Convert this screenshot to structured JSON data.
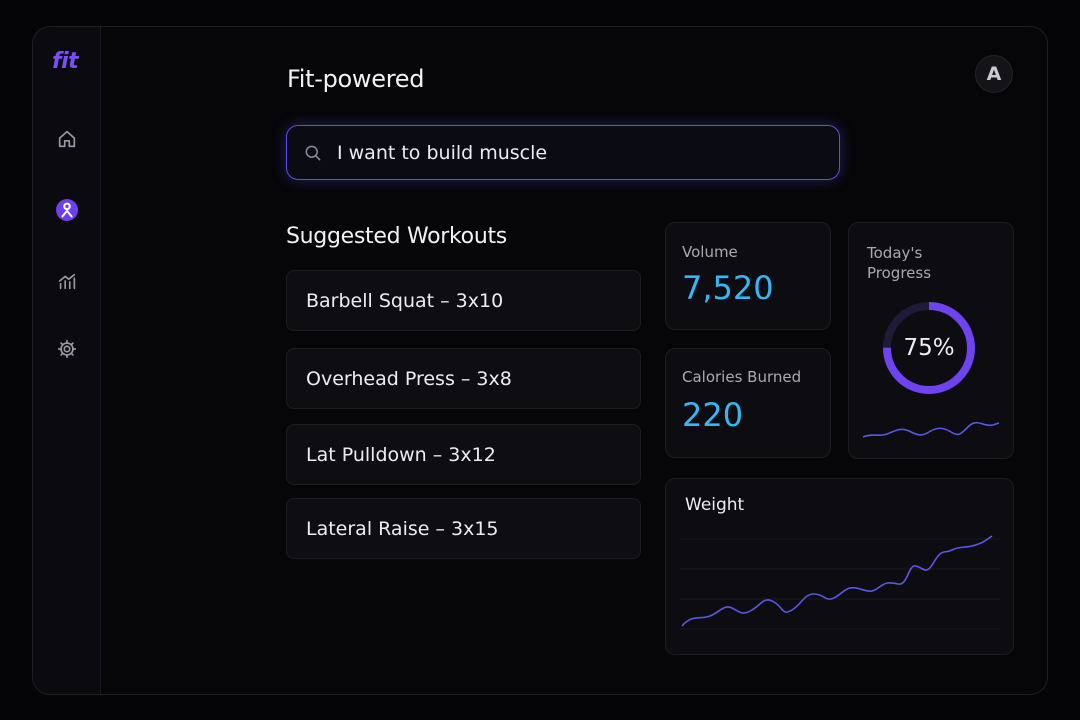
{
  "app": {
    "logo": "fit",
    "title": "Fit-powered",
    "avatar_initial": "A",
    "accent_color": "#7c4dff",
    "value_color": "#35b6f5"
  },
  "sidebar": {
    "items": [
      {
        "icon": "home-icon",
        "active": false
      },
      {
        "icon": "workouts-icon",
        "active": true
      },
      {
        "icon": "stats-icon",
        "active": false
      },
      {
        "icon": "gear-icon",
        "active": false
      }
    ]
  },
  "search": {
    "value": "I want to build muscle",
    "icon": "search-icon"
  },
  "workouts": {
    "title": "Suggested Workouts",
    "items": [
      {
        "label": "Barbell Squat – 3x10"
      },
      {
        "label": "Overhead Press – 3x8"
      },
      {
        "label": "Lat Pulldown – 3x12"
      },
      {
        "label": "Lateral Raise – 3x15"
      }
    ]
  },
  "stats": {
    "volume": {
      "label": "Volume",
      "value": "7,520"
    },
    "calories": {
      "label": "Calories Burned",
      "value": "220"
    },
    "progress": {
      "label": "Today's Progress",
      "value_text": "75%",
      "value": 0.75
    }
  },
  "weight": {
    "title": "Weight"
  }
}
